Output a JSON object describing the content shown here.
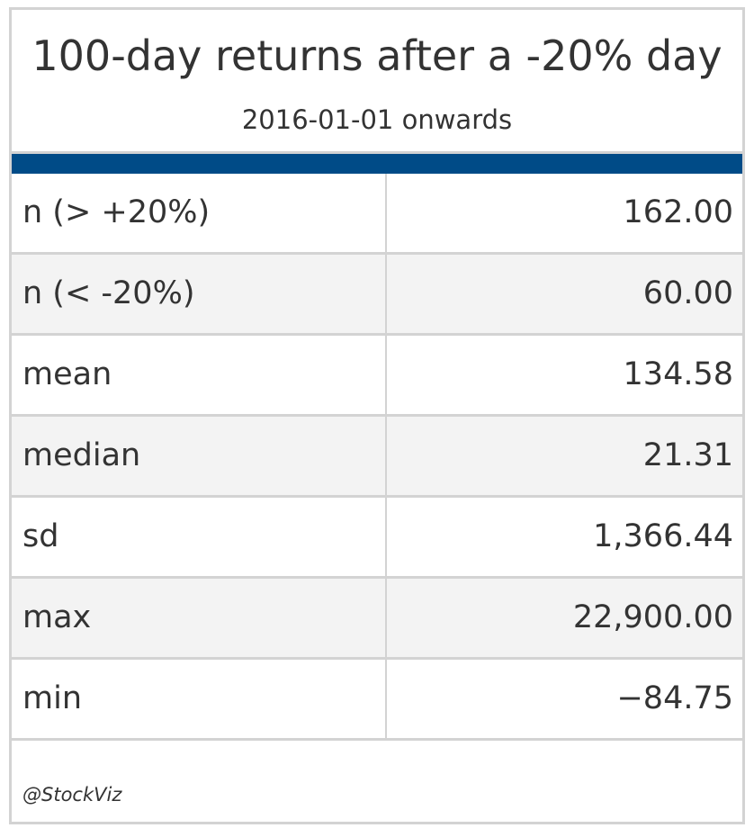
{
  "chart_data": {
    "type": "table",
    "title": "100-day returns after a -20% day",
    "subtitle": "2016-01-01 onwards",
    "rows": [
      {
        "label": "n (> +20%)",
        "value": "162.00"
      },
      {
        "label": "n (< -20%)",
        "value": "60.00"
      },
      {
        "label": "mean",
        "value": "134.58"
      },
      {
        "label": "median",
        "value": "21.31"
      },
      {
        "label": "sd",
        "value": "1,366.44"
      },
      {
        "label": "max",
        "value": "22,900.00"
      },
      {
        "label": "min",
        "value": "−84.75"
      }
    ],
    "source_note": "@StockViz"
  },
  "colors": {
    "accent_bar": "#004b87",
    "row_alt": "#f3f3f3",
    "border": "#d3d3d3",
    "text": "#333333"
  }
}
